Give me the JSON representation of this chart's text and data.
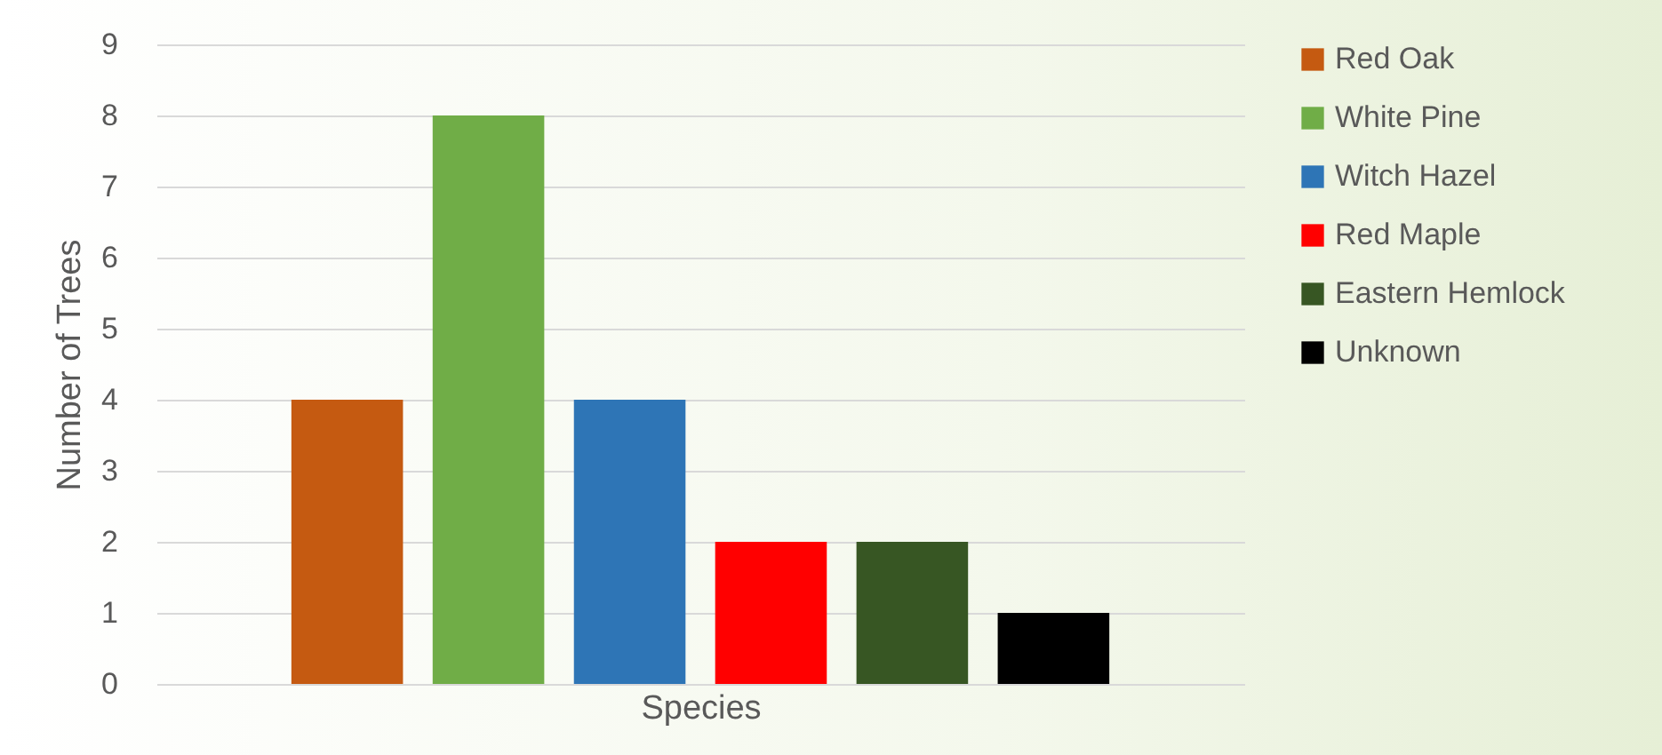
{
  "chart_data": {
    "type": "bar",
    "xlabel": "Species",
    "ylabel": "Number of Trees",
    "categories": [
      null
    ],
    "series": [
      {
        "name": "Red Oak",
        "color": "#c55a11",
        "values": [
          4
        ]
      },
      {
        "name": "White Pine",
        "color": "#70ad47",
        "values": [
          8
        ]
      },
      {
        "name": "Witch Hazel",
        "color": "#2e75b6",
        "values": [
          4
        ]
      },
      {
        "name": "Red Maple",
        "color": "#ff0000",
        "values": [
          2
        ]
      },
      {
        "name": "Eastern Hemlock",
        "color": "#375623",
        "values": [
          2
        ]
      },
      {
        "name": "Unknown",
        "color": "#000000",
        "values": [
          1
        ]
      }
    ],
    "ylim": [
      0,
      9
    ],
    "yticks": [
      0,
      1,
      2,
      3,
      4,
      5,
      6,
      7,
      8,
      9
    ],
    "grid": "y",
    "legend": "right"
  }
}
